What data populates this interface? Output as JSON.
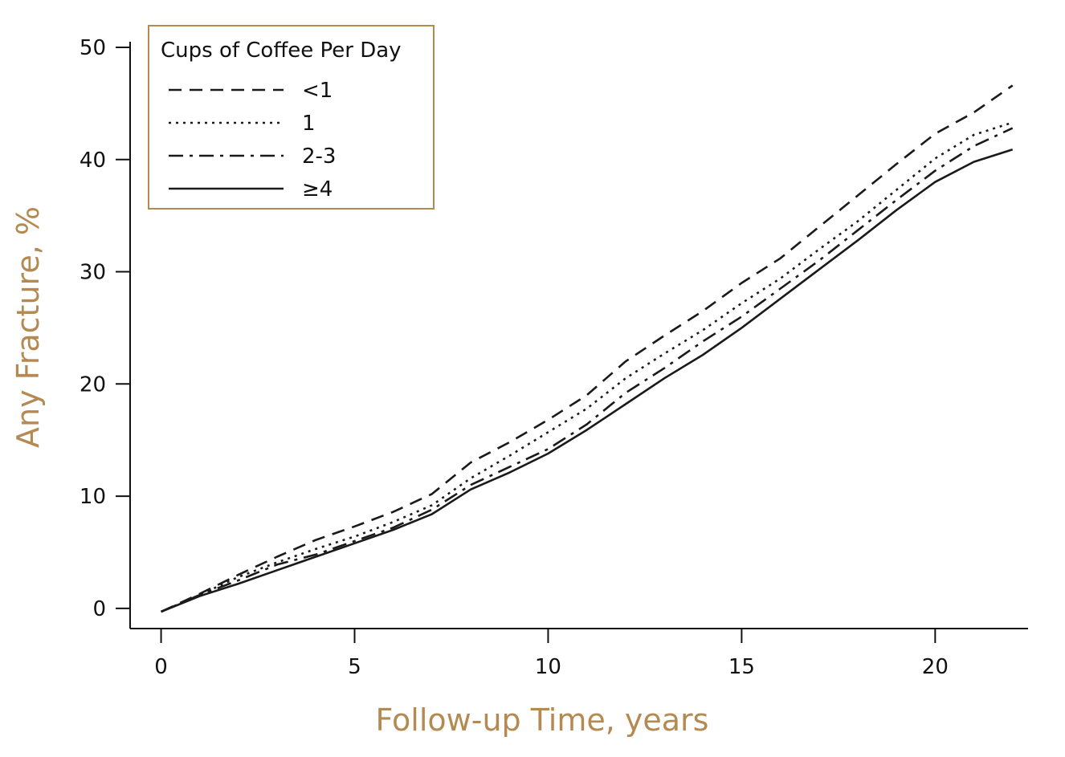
{
  "chart_data": {
    "type": "line",
    "xlabel": "Follow-up Time, years",
    "ylabel": "Any Fracture, %",
    "xlim": [
      -0.8,
      22.4
    ],
    "ylim": [
      -1.8,
      50.5
    ],
    "xticks": [
      0,
      5,
      10,
      15,
      20
    ],
    "yticks": [
      0,
      10,
      20,
      30,
      40,
      50
    ],
    "grid": false,
    "legend": {
      "title": "Cups of Coffee Per Day",
      "position": "top-left"
    },
    "x": [
      0,
      1,
      2,
      3,
      4,
      5,
      6,
      7,
      8,
      9,
      10,
      11,
      12,
      13,
      14,
      15,
      16,
      17,
      18,
      19,
      20,
      21,
      22
    ],
    "series": [
      {
        "name": "<1",
        "dash": "dashed",
        "values": [
          -0.3,
          1.3,
          3.0,
          4.6,
          6.1,
          7.3,
          8.6,
          10.2,
          13.0,
          14.8,
          16.8,
          19.0,
          22.0,
          24.3,
          26.5,
          29.0,
          31.2,
          34.0,
          36.8,
          39.6,
          42.3,
          44.2,
          46.6
        ]
      },
      {
        "name": "1",
        "dash": "dotted",
        "values": [
          -0.3,
          1.2,
          2.8,
          4.1,
          5.3,
          6.4,
          7.7,
          9.2,
          11.6,
          13.6,
          15.7,
          17.8,
          20.5,
          22.7,
          24.8,
          27.2,
          29.4,
          32.0,
          34.5,
          37.3,
          40.1,
          42.2,
          43.3
        ]
      },
      {
        "name": "2-3",
        "dash": "dash-dot",
        "values": [
          -0.3,
          1.2,
          2.5,
          3.9,
          4.8,
          6.0,
          7.2,
          8.8,
          11.0,
          12.6,
          14.2,
          16.4,
          19.2,
          21.4,
          23.8,
          26.0,
          28.5,
          31.0,
          33.7,
          36.4,
          39.0,
          41.2,
          42.8
        ]
      },
      {
        "name": "≥4",
        "dash": "solid",
        "values": [
          -0.3,
          1.1,
          2.2,
          3.4,
          4.6,
          5.8,
          7.0,
          8.4,
          10.6,
          12.1,
          13.8,
          15.9,
          18.2,
          20.5,
          22.6,
          25.0,
          27.6,
          30.2,
          32.8,
          35.5,
          38.0,
          39.8,
          40.9
        ]
      }
    ]
  },
  "colors": {
    "axis": "#111111",
    "axis_title": "#B58A52",
    "legend_border": "#B58A52",
    "line": "#1a1a1a"
  }
}
